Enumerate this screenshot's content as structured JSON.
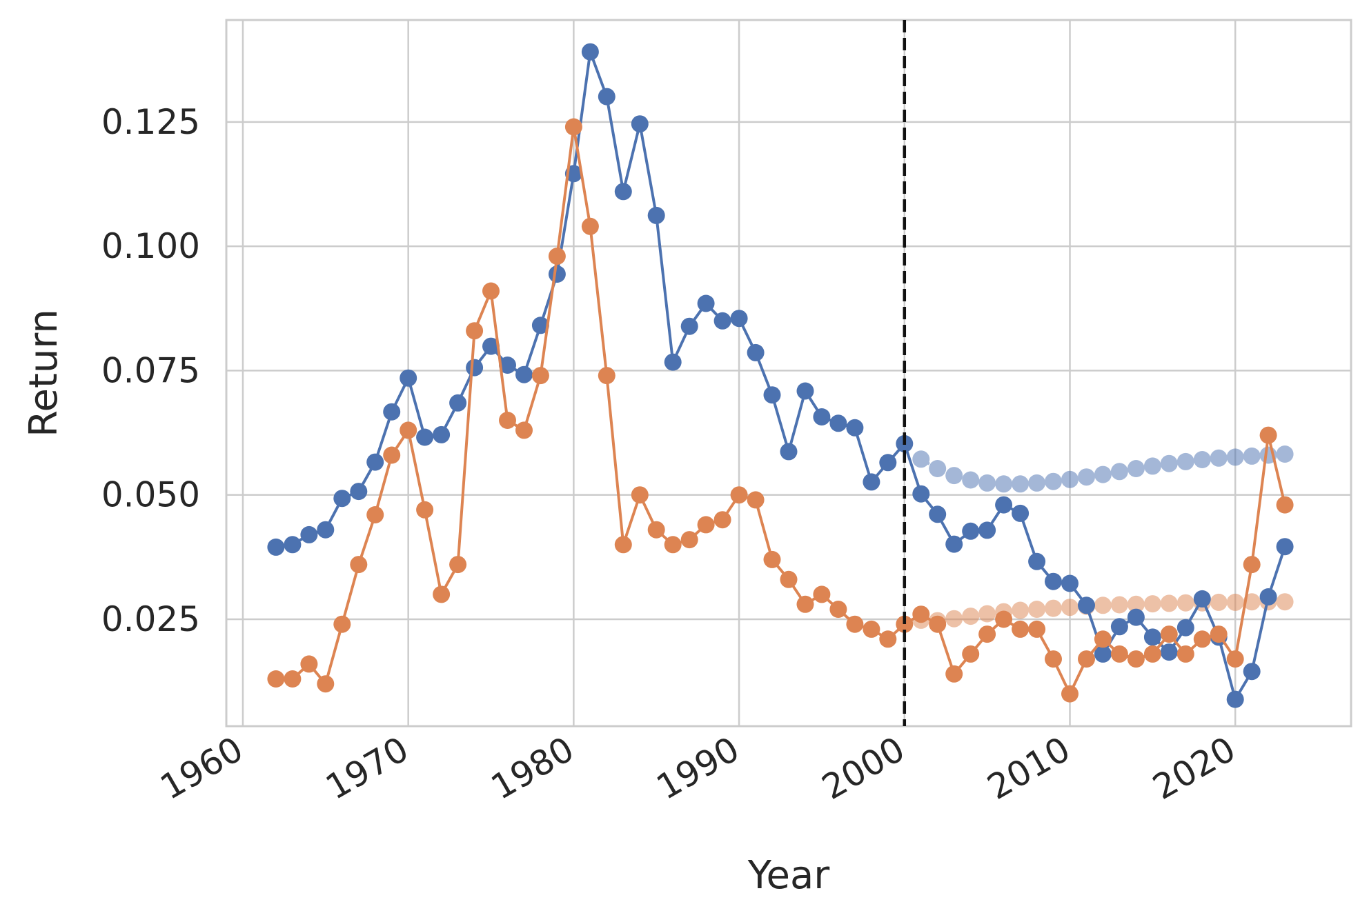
{
  "chart_data": {
    "type": "line",
    "title": "",
    "xlabel": "Year",
    "ylabel": "Return",
    "xlim": [
      1959,
      2027
    ],
    "ylim": [
      0.0035,
      0.1455
    ],
    "xticks": [
      1960,
      1970,
      1980,
      1990,
      2000,
      2010,
      2020
    ],
    "xtick_labels": [
      "1960",
      "1970",
      "1980",
      "1990",
      "2000",
      "2010",
      "2020"
    ],
    "yticks": [
      0.025,
      0.05,
      0.075,
      0.1,
      0.125
    ],
    "ytick_labels": [
      "0.025",
      "0.050",
      "0.075",
      "0.100",
      "0.125"
    ],
    "grid": true,
    "legend": "none",
    "vline": {
      "x": 2000,
      "style": "dashed",
      "color": "#111111"
    },
    "series": [
      {
        "color": "#4c72b0",
        "style": "solid",
        "x": [
          1962,
          1963,
          1964,
          1965,
          1966,
          1967,
          1968,
          1969,
          1970,
          1971,
          1972,
          1973,
          1974,
          1975,
          1976,
          1977,
          1978,
          1979,
          1980,
          1981,
          1982,
          1983,
          1984,
          1985,
          1986,
          1987,
          1988,
          1989,
          1990,
          1991,
          1992,
          1993,
          1994,
          1995,
          1996,
          1997,
          1998,
          1999,
          2000,
          2001,
          2002,
          2003,
          2004,
          2005,
          2006,
          2007,
          2008,
          2009,
          2010,
          2011,
          2012,
          2013,
          2014,
          2015,
          2016,
          2017,
          2018,
          2019,
          2020,
          2021,
          2022,
          2023
        ],
        "y": [
          0.0395,
          0.04,
          0.042,
          0.043,
          0.0493,
          0.0507,
          0.0566,
          0.0667,
          0.0735,
          0.0616,
          0.0621,
          0.0685,
          0.0756,
          0.0799,
          0.0761,
          0.0742,
          0.0841,
          0.0944,
          0.1146,
          0.1391,
          0.1301,
          0.111,
          0.1246,
          0.1062,
          0.0767,
          0.0839,
          0.0885,
          0.085,
          0.0855,
          0.0786,
          0.0701,
          0.0587,
          0.0709,
          0.0657,
          0.0644,
          0.0635,
          0.0526,
          0.0565,
          0.0603,
          0.0502,
          0.0461,
          0.0401,
          0.0427,
          0.0429,
          0.048,
          0.0463,
          0.0366,
          0.0326,
          0.0322,
          0.0278,
          0.018,
          0.0235,
          0.0254,
          0.0214,
          0.0184,
          0.0233,
          0.0291,
          0.0214,
          0.0089,
          0.0145,
          0.0295,
          0.0396
        ]
      },
      {
        "color": "#dd8452",
        "style": "solid",
        "x": [
          1962,
          1963,
          1964,
          1965,
          1966,
          1967,
          1968,
          1969,
          1970,
          1971,
          1972,
          1973,
          1974,
          1975,
          1976,
          1977,
          1978,
          1979,
          1980,
          1981,
          1982,
          1983,
          1984,
          1985,
          1986,
          1987,
          1988,
          1989,
          1990,
          1991,
          1992,
          1993,
          1994,
          1995,
          1996,
          1997,
          1998,
          1999,
          2000,
          2001,
          2002,
          2003,
          2004,
          2005,
          2006,
          2007,
          2008,
          2009,
          2010,
          2011,
          2012,
          2013,
          2014,
          2015,
          2016,
          2017,
          2018,
          2019,
          2020,
          2021,
          2022,
          2023
        ],
        "y": [
          0.013,
          0.013,
          0.016,
          0.012,
          0.024,
          0.036,
          0.046,
          0.058,
          0.063,
          0.047,
          0.03,
          0.036,
          0.083,
          0.091,
          0.065,
          0.063,
          0.074,
          0.098,
          0.124,
          0.104,
          0.074,
          0.04,
          0.05,
          0.043,
          0.04,
          0.041,
          0.044,
          0.045,
          0.05,
          0.049,
          0.037,
          0.033,
          0.028,
          0.03,
          0.027,
          0.024,
          0.023,
          0.021,
          0.024,
          0.026,
          0.024,
          0.014,
          0.018,
          0.022,
          0.025,
          0.023,
          0.023,
          0.017,
          0.01,
          0.017,
          0.021,
          0.018,
          0.017,
          0.018,
          0.022,
          0.018,
          0.021,
          0.022,
          0.017,
          0.036,
          0.062,
          0.048
        ]
      },
      {
        "color": "#4c72b0",
        "style": "dashed-faded",
        "x": [
          2001,
          2002,
          2003,
          2004,
          2005,
          2006,
          2007,
          2008,
          2009,
          2010,
          2011,
          2012,
          2013,
          2014,
          2015,
          2016,
          2017,
          2018,
          2019,
          2020,
          2021,
          2022,
          2023
        ],
        "y": [
          0.0572,
          0.0553,
          0.0539,
          0.053,
          0.0524,
          0.0522,
          0.0522,
          0.0524,
          0.0527,
          0.0531,
          0.0536,
          0.0541,
          0.0547,
          0.0553,
          0.0558,
          0.0563,
          0.0567,
          0.0571,
          0.0574,
          0.0576,
          0.0578,
          0.058,
          0.0582
        ]
      },
      {
        "color": "#dd8452",
        "style": "dashed-faded",
        "x": [
          2001,
          2002,
          2003,
          2004,
          2005,
          2006,
          2007,
          2008,
          2009,
          2010,
          2011,
          2012,
          2013,
          2014,
          2015,
          2016,
          2017,
          2018,
          2019,
          2020,
          2021,
          2022,
          2023
        ],
        "y": [
          0.0248,
          0.0247,
          0.0251,
          0.0256,
          0.0261,
          0.0265,
          0.0268,
          0.027,
          0.0272,
          0.0274,
          0.0276,
          0.0278,
          0.0279,
          0.028,
          0.0281,
          0.0282,
          0.0283,
          0.0283,
          0.0284,
          0.0284,
          0.0285,
          0.0285,
          0.0285
        ]
      }
    ]
  }
}
